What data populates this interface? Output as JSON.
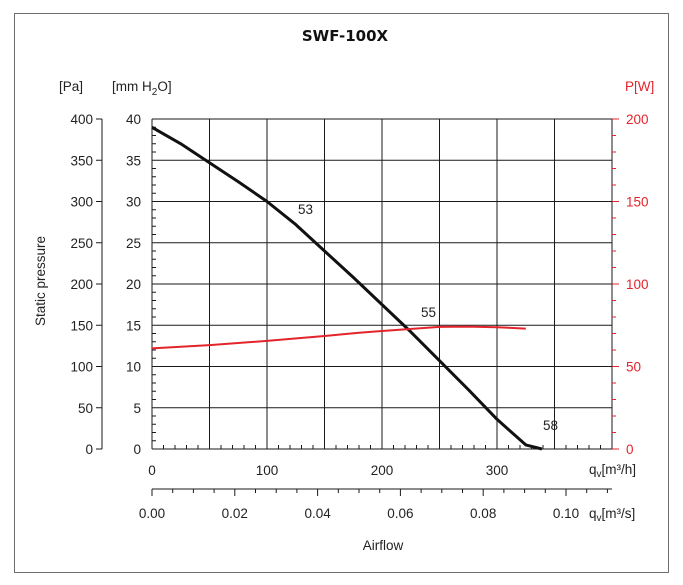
{
  "chart_data": {
    "type": "line",
    "title": "SWF-100X",
    "ylabel": "Static pressure",
    "xlabel": "Airflow",
    "y_left_outer": {
      "unit": "[Pa]",
      "ticks": [
        "0",
        "50",
        "100",
        "150",
        "200",
        "250",
        "300",
        "350",
        "400"
      ],
      "ylim": [
        0,
        400
      ]
    },
    "y_left_inner": {
      "unit_main": "[mm H",
      "unit_sub": "2",
      "unit_end": "O]",
      "ticks": [
        "0",
        "5",
        "10",
        "15",
        "20",
        "25",
        "30",
        "35",
        "40"
      ],
      "ylim": [
        0,
        40
      ]
    },
    "y_right": {
      "unit": "P[W]",
      "ticks": [
        "0",
        "50",
        "100",
        "150",
        "200"
      ],
      "ylim": [
        0,
        200
      ],
      "color": "#e3242b"
    },
    "x_top": {
      "unit_main": "q",
      "unit_sub": "v",
      "unit_end": "[m³/h]",
      "ticks": [
        "0",
        "100",
        "200",
        "300"
      ],
      "xlim": [
        0,
        400
      ]
    },
    "x_bottom": {
      "unit_main": "q",
      "unit_sub": "v",
      "unit_end": "[m³/s]",
      "ticks": [
        "0.00",
        "0.02",
        "0.04",
        "0.06",
        "0.08",
        "0.10"
      ],
      "xlim": [
        0,
        0.1111
      ]
    },
    "grid": true,
    "series": [
      {
        "axis": "pressure_pa",
        "color": "#111111",
        "x": [
          0,
          25,
          50,
          75,
          100,
          125,
          150,
          175,
          200,
          225,
          250,
          275,
          300,
          325,
          339
        ],
        "y": [
          390,
          370,
          347,
          324,
          300,
          272,
          240,
          208,
          175,
          142,
          107,
          72,
          36,
          5,
          0
        ]
      },
      {
        "axis": "power_w",
        "color": "#e3242b",
        "x": [
          0,
          50,
          100,
          150,
          180,
          200,
          250,
          275,
          300,
          325
        ],
        "y": [
          61,
          63,
          65.5,
          68.5,
          70.5,
          71.5,
          74,
          74.2,
          73.8,
          73
        ]
      }
    ],
    "annotations": [
      {
        "text": "53",
        "x": 120,
        "y": 280
      },
      {
        "text": "55",
        "x": 227,
        "y": 155
      },
      {
        "text": "58",
        "x": 333,
        "y": 18
      }
    ]
  }
}
